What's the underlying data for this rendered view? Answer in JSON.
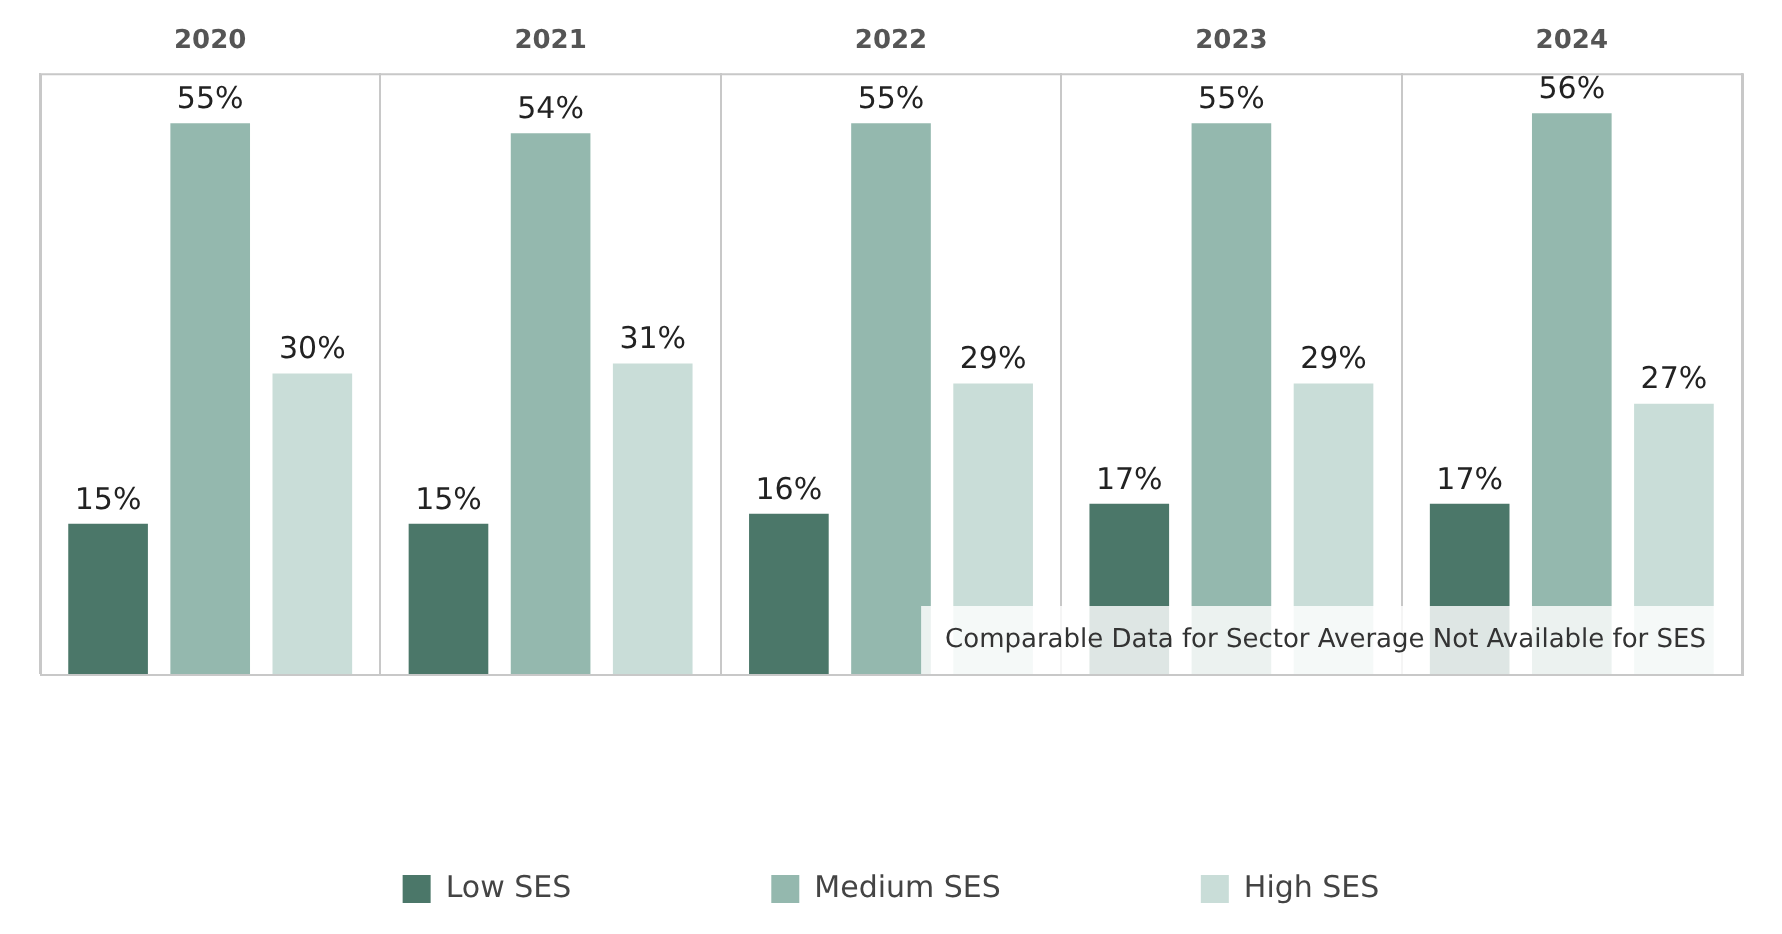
{
  "chart_data": {
    "type": "bar",
    "categories": [
      "2020",
      "2021",
      "2022",
      "2023",
      "2024"
    ],
    "series": [
      {
        "name": "Low SES",
        "color": "#4b7769",
        "values": [
          15,
          15,
          16,
          17,
          17
        ],
        "value_labels": [
          "15%",
          "15%",
          "16%",
          "17%",
          "17%"
        ]
      },
      {
        "name": "Medium SES",
        "color": "#94b8ae",
        "values": [
          55,
          54,
          55,
          55,
          56
        ],
        "value_labels": [
          "55%",
          "54%",
          "55%",
          "55%",
          "56%"
        ]
      },
      {
        "name": "High SES",
        "color": "#c9ddd8",
        "values": [
          30,
          31,
          29,
          29,
          27
        ],
        "value_labels": [
          "30%",
          "31%",
          "29%",
          "29%",
          "27%"
        ]
      }
    ],
    "annotations": [
      "Comparable Data for Sector Average Not Available for SES"
    ],
    "grid": "x",
    "legend": "bottom",
    "tick_labels": "x"
  }
}
